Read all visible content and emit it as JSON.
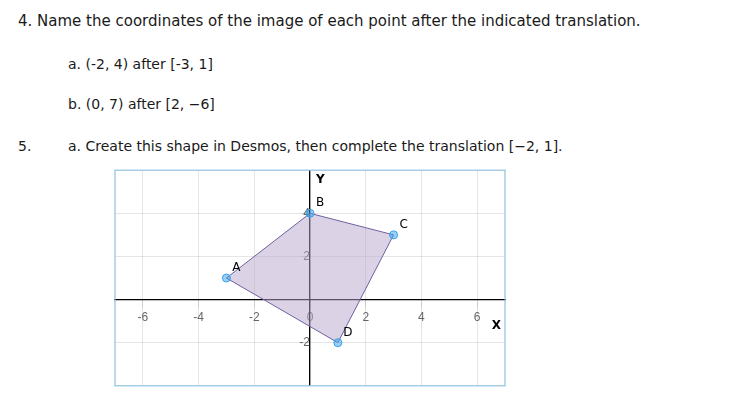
{
  "chart_data": {
    "type": "polygon",
    "title": "4.  Name the coordinates of the image of each point after the indicated translation.",
    "annotations": [
      "a.  (-2, 4) after [-3, 1]",
      "b.  (0, 7) after [2, −6]",
      "5.",
      "a.  Create this shape in Desmos, then complete the translation [−2, 1]."
    ],
    "x": [
      -3,
      0,
      3,
      1
    ],
    "values": [
      1,
      4,
      3,
      -2
    ],
    "point_labels": [
      "A",
      "B",
      "C",
      "D"
    ],
    "color": "#b8a8cc",
    "marker": "circle",
    "x_label": "X",
    "y_label": "Y",
    "xlim": [
      -7,
      7
    ],
    "ylim": [
      -4,
      6
    ],
    "xticks": [
      -6,
      -4,
      -2,
      0,
      2,
      4,
      6
    ],
    "yticks": [
      -2,
      2,
      4
    ],
    "grid": true
  }
}
